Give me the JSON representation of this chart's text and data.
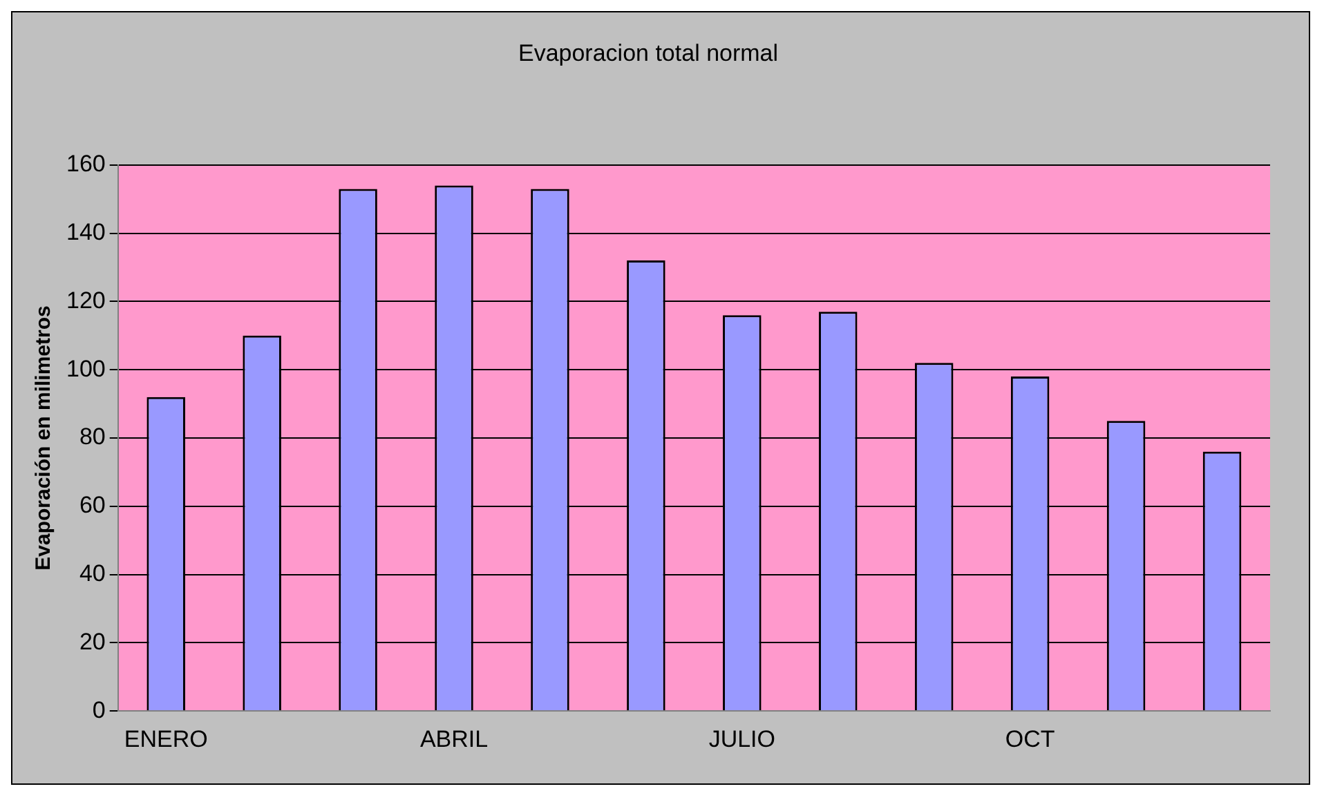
{
  "chart_data": {
    "type": "bar",
    "title": "Evaporacion total normal",
    "ylabel": "Evaporación en milimetros",
    "categories": [
      "ENERO",
      null,
      null,
      "ABRIL",
      null,
      null,
      "JULIO",
      null,
      null,
      "OCT",
      null,
      null
    ],
    "values": [
      92,
      110,
      153,
      154,
      153,
      132,
      116,
      117,
      102,
      98,
      85,
      76
    ],
    "color": "#9999ff",
    "ylim": [
      0,
      160
    ],
    "yticks": [
      0,
      20,
      40,
      60,
      80,
      100,
      120,
      140,
      160
    ],
    "grid": "y",
    "legend": false
  }
}
